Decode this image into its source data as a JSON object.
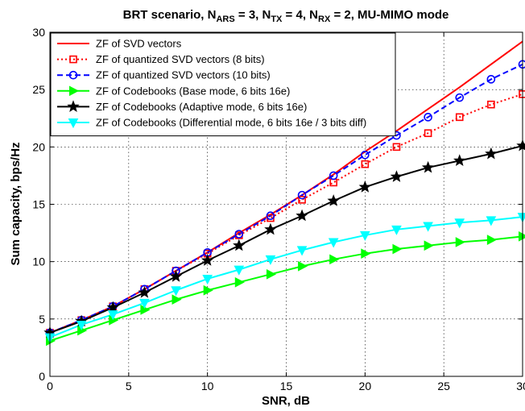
{
  "chart_data": {
    "type": "line",
    "title": {
      "parts": [
        {
          "t": "BRT scenario, N",
          "s": "n"
        },
        {
          "t": "ARS",
          "s": "sub"
        },
        {
          "t": " = 3, N",
          "s": "n"
        },
        {
          "t": "TX",
          "s": "sub"
        },
        {
          "t": " = 4, N",
          "s": "n"
        },
        {
          "t": "RX",
          "s": "sub"
        },
        {
          "t": " = 2, MU-MIMO mode",
          "s": "n"
        }
      ]
    },
    "xlabel": "SNR, dB",
    "ylabel": "Sum capacity, bps/Hz",
    "xlim": [
      0,
      30
    ],
    "ylim": [
      0,
      30
    ],
    "xticks": [
      0,
      5,
      10,
      15,
      20,
      25,
      30
    ],
    "yticks": [
      0,
      5,
      10,
      15,
      20,
      25,
      30
    ],
    "grid": true,
    "legend_position": "top-left",
    "x": [
      0,
      2,
      4,
      6,
      8,
      10,
      12,
      14,
      16,
      18,
      20,
      22,
      24,
      26,
      28,
      30
    ],
    "series": [
      {
        "name": "ZF of SVD vectors",
        "color": "#ff0000",
        "line_style": "solid",
        "marker": "none",
        "values": [
          3.8,
          4.9,
          6.1,
          7.6,
          9.2,
          10.8,
          12.5,
          14.1,
          15.8,
          17.6,
          19.6,
          21.4,
          23.3,
          25.2,
          27.2,
          29.2
        ]
      },
      {
        "name": "ZF of quantized SVD vectors (8 bits)",
        "color": "#ff0000",
        "line_style": "dotted",
        "marker": "square",
        "values": [
          3.8,
          4.9,
          6.1,
          7.6,
          9.2,
          10.7,
          12.3,
          13.8,
          15.4,
          16.9,
          18.5,
          20.0,
          21.2,
          22.6,
          23.7,
          24.6
        ]
      },
      {
        "name": "ZF of quantized SVD vectors (10 bits)",
        "color": "#0000ff",
        "line_style": "dashed",
        "marker": "circle",
        "values": [
          3.8,
          4.9,
          6.1,
          7.6,
          9.2,
          10.8,
          12.4,
          14.0,
          15.8,
          17.5,
          19.3,
          21.0,
          22.6,
          24.3,
          25.9,
          27.2
        ]
      },
      {
        "name": "ZF of Codebooks (Base mode, 6 bits 16e)",
        "color": "#00ff00",
        "line_style": "solid",
        "marker": "triangle-right",
        "values": [
          3.1,
          4.0,
          4.9,
          5.8,
          6.7,
          7.5,
          8.2,
          8.9,
          9.6,
          10.2,
          10.7,
          11.1,
          11.4,
          11.7,
          11.9,
          12.2
        ]
      },
      {
        "name": "ZF of Codebooks (Adaptive mode, 6 bits 16e)",
        "color": "#000000",
        "line_style": "solid",
        "marker": "star",
        "values": [
          3.8,
          4.8,
          6.0,
          7.3,
          8.7,
          10.1,
          11.4,
          12.8,
          14.0,
          15.3,
          16.5,
          17.4,
          18.2,
          18.8,
          19.4,
          20.1
        ]
      },
      {
        "name": "ZF of Codebooks (Differential mode, 6 bits 16e / 3 bits diff)",
        "color": "#00ffff",
        "line_style": "solid",
        "marker": "triangle-down",
        "values": [
          3.4,
          4.5,
          5.4,
          6.4,
          7.5,
          8.5,
          9.3,
          10.2,
          11.0,
          11.7,
          12.3,
          12.8,
          13.1,
          13.4,
          13.6,
          13.9
        ]
      }
    ]
  }
}
